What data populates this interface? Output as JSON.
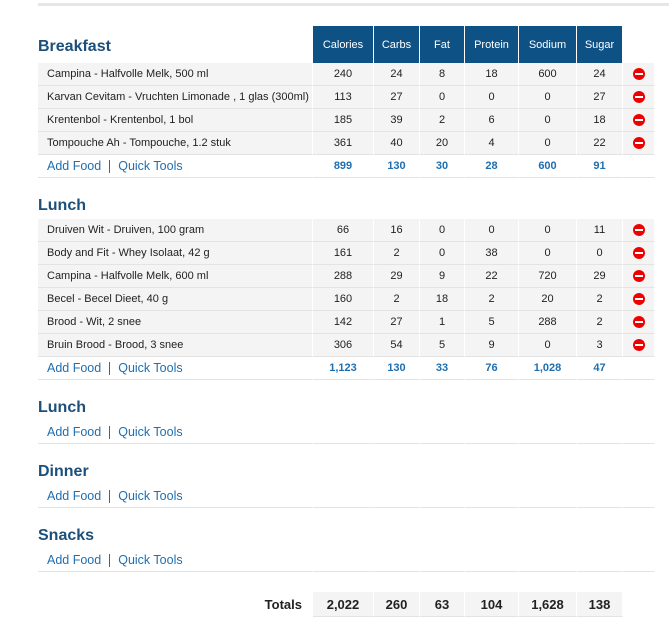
{
  "columns": [
    "Calories",
    "Carbs",
    "Fat",
    "Protein",
    "Sodium",
    "Sugar"
  ],
  "add_food_label": "Add Food",
  "quick_tools_label": "Quick Tools",
  "meals": [
    {
      "title": "Breakfast",
      "show_header": true,
      "items": [
        {
          "name": "Campina - Halfvolle Melk, 500 ml",
          "values": [
            "240",
            "24",
            "8",
            "18",
            "600",
            "24"
          ]
        },
        {
          "name": "Karvan Cevitam - Vruchten Limonade , 1 glas (300ml)",
          "values": [
            "113",
            "27",
            "0",
            "0",
            "0",
            "27"
          ]
        },
        {
          "name": "Krentenbol - Krentenbol, 1 bol",
          "values": [
            "185",
            "39",
            "2",
            "6",
            "0",
            "18"
          ]
        },
        {
          "name": "Tompouche Ah - Tompouche, 1.2 stuk",
          "values": [
            "361",
            "40",
            "20",
            "4",
            "0",
            "22"
          ]
        }
      ],
      "totals": [
        "899",
        "130",
        "30",
        "28",
        "600",
        "91"
      ]
    },
    {
      "title": "Lunch",
      "items": [
        {
          "name": "Druiven Wit - Druiven, 100 gram",
          "values": [
            "66",
            "16",
            "0",
            "0",
            "0",
            "11"
          ]
        },
        {
          "name": "Body and Fit - Whey Isolaat, 42 g",
          "values": [
            "161",
            "2",
            "0",
            "38",
            "0",
            "0"
          ]
        },
        {
          "name": "Campina - Halfvolle Melk, 600 ml",
          "values": [
            "288",
            "29",
            "9",
            "22",
            "720",
            "29"
          ]
        },
        {
          "name": "Becel - Becel Dieet, 40 g",
          "values": [
            "160",
            "2",
            "18",
            "2",
            "20",
            "2"
          ]
        },
        {
          "name": "Brood - Wit, 2 snee",
          "values": [
            "142",
            "27",
            "1",
            "5",
            "288",
            "2"
          ]
        },
        {
          "name": "Bruin Brood - Brood, 3 snee",
          "values": [
            "306",
            "54",
            "5",
            "9",
            "0",
            "3"
          ]
        }
      ],
      "totals": [
        "1,123",
        "130",
        "33",
        "76",
        "1,028",
        "47"
      ]
    },
    {
      "title": "Lunch",
      "items": [],
      "totals": []
    },
    {
      "title": "Dinner",
      "items": [],
      "totals": []
    },
    {
      "title": "Snacks",
      "items": [],
      "totals": []
    }
  ],
  "grand_totals": {
    "label": "Totals",
    "values": [
      "2,022",
      "260",
      "63",
      "104",
      "1,628",
      "138"
    ]
  },
  "colors": {
    "header_bg": "#0e5184",
    "link": "#1f6fb0",
    "title": "#1c4f7a",
    "delete": "#e00000"
  }
}
